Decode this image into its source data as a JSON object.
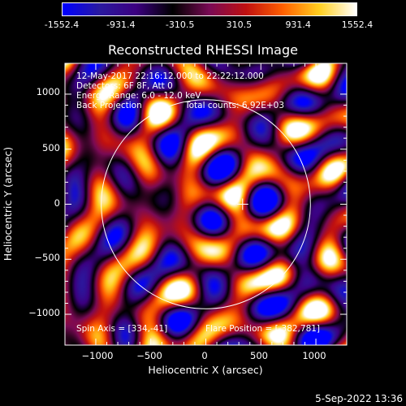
{
  "colorbar": {
    "ticks": [
      "-1552.4",
      "-931.4",
      "-310.5",
      "310.5",
      "931.4",
      "1552.4"
    ],
    "tick_values": [
      -1552.4,
      -931.4,
      -310.5,
      310.5,
      931.4,
      1552.4
    ],
    "range": [
      -1552.4,
      1552.4
    ],
    "colors": [
      "#0000ff",
      "#2a1aa0",
      "#3c0080",
      "#000000",
      "#7a0a55",
      "#c01010",
      "#ff6000",
      "#ffd020",
      "#ffffff"
    ]
  },
  "info": {
    "line1": "12-May-2017 22:16:12.000 to 22:22:12.000",
    "line2": "Detectors: 6F 8F, Att 0",
    "line3": "Energy Range: 6.0 - 12.0 keV",
    "line4a": "Back Projection",
    "line4b": "Total counts: 6.92E+03",
    "spin_axis": "Spin Axis = [334,-41]",
    "flare_position": "Flare Position = [-382,781]"
  },
  "footer": {
    "date": "5-Sep-2022 13:36"
  },
  "chart_data": {
    "type": "heatmap",
    "title": "Reconstructed RHESSI Image",
    "xlabel": "Heliocentric X (arcsec)",
    "ylabel": "Heliocentric Y (arcsec)",
    "xlim": [
      -1280,
      1280
    ],
    "ylim": [
      -1280,
      1280
    ],
    "x_ticks": [
      -1000,
      -500,
      0,
      500,
      1000
    ],
    "x_tick_labels": [
      "−1000",
      "−500",
      "0",
      "500",
      "1000"
    ],
    "y_ticks": [
      1000,
      500,
      0,
      -500,
      -1000
    ],
    "y_tick_labels": [
      "1000",
      "500",
      "0",
      "−500",
      "−1000"
    ],
    "solar_limb_radius": 950,
    "limb_center": [
      0,
      0
    ],
    "marker": {
      "x": 334,
      "y": 0
    },
    "grid": false,
    "color_scale": [
      -1552.4,
      1552.4
    ]
  }
}
